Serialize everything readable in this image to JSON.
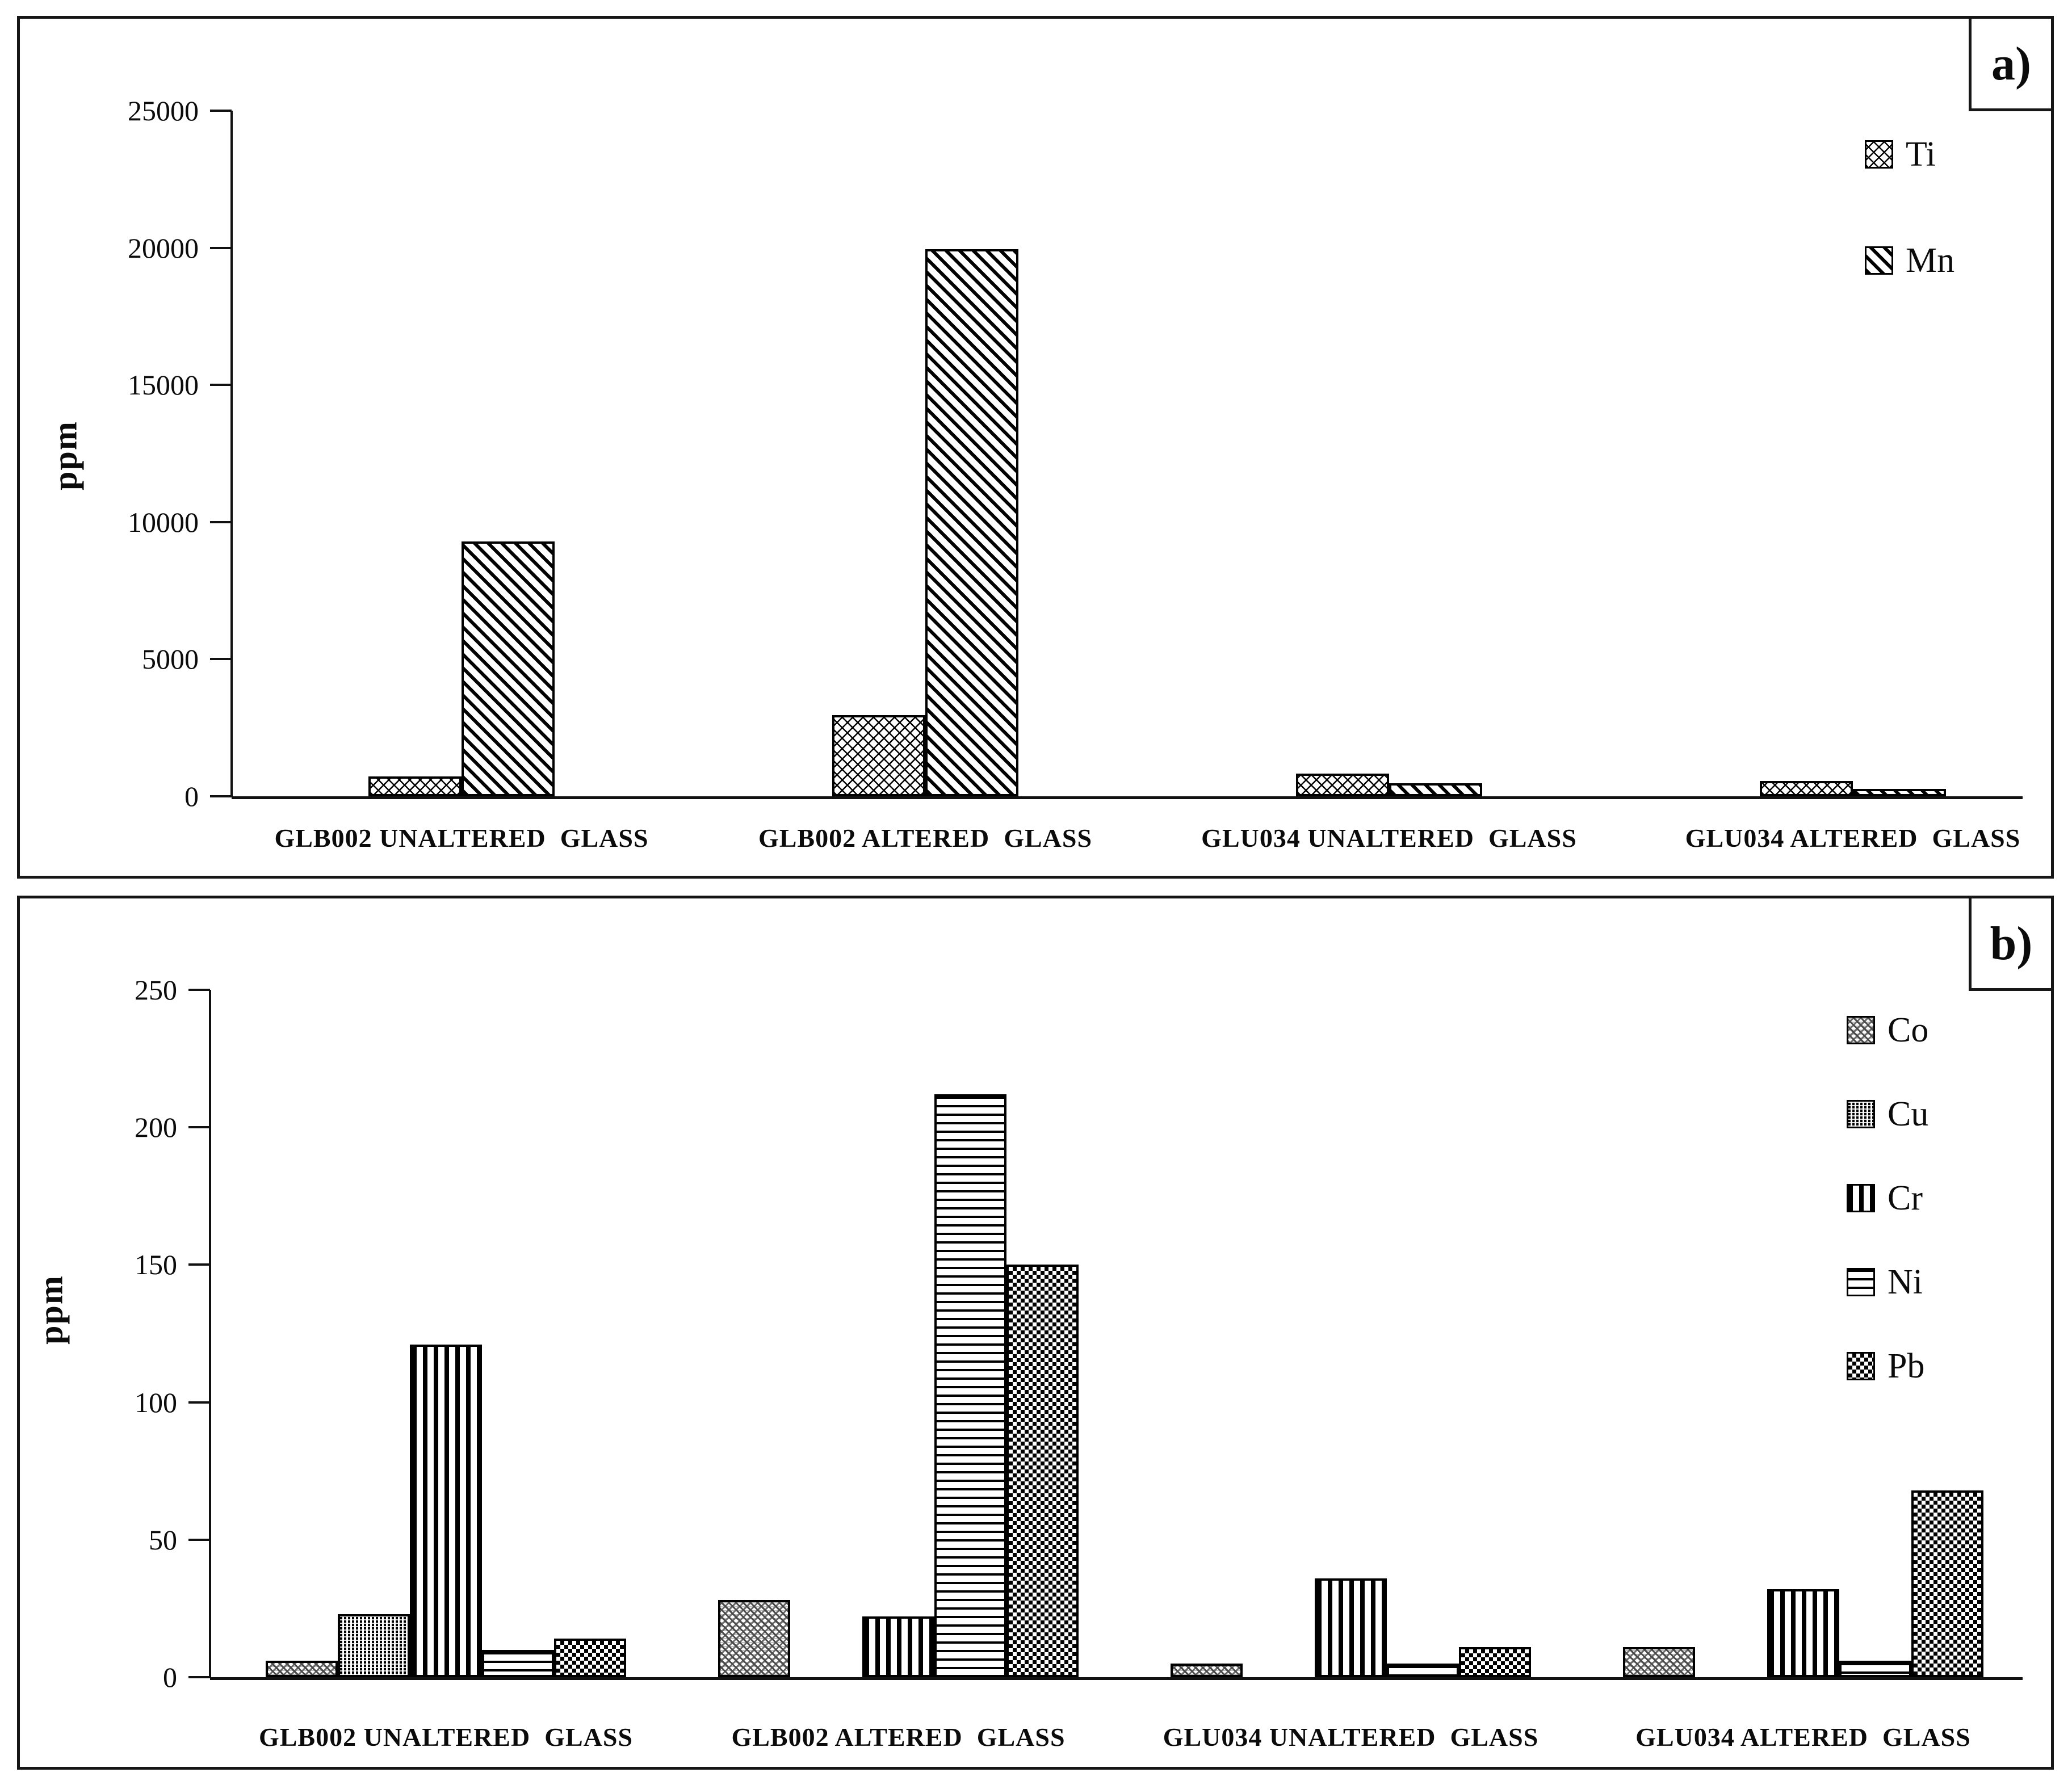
{
  "figure": {
    "background": "#ffffff",
    "border_color": "#161616",
    "bar_outline_color": "#000000"
  },
  "chart_data": [
    {
      "type": "bar",
      "panel_label": "a)",
      "title": "",
      "xlabel": "",
      "ylabel": "ppm",
      "ylim": [
        0,
        25000
      ],
      "yticks": [
        0,
        5000,
        10000,
        15000,
        20000,
        25000
      ],
      "grid": false,
      "legend_position": "top-right",
      "categories": [
        "GLB002 UNALTERED  GLASS",
        "GLB002 ALTERED  GLASS",
        "GLU034 UNALTERED  GLASS",
        "GLU034 ALTERED  GLASS"
      ],
      "series": [
        {
          "name": "Ti",
          "pattern": "crosshatch",
          "values": [
            720,
            2950,
            820,
            560
          ]
        },
        {
          "name": "Mn",
          "pattern": "diagonal",
          "values": [
            9300,
            19950,
            480,
            260
          ]
        }
      ]
    },
    {
      "type": "bar",
      "panel_label": "b)",
      "title": "",
      "xlabel": "",
      "ylabel": "ppm",
      "ylim": [
        0,
        250
      ],
      "yticks": [
        0,
        50,
        100,
        150,
        200,
        250
      ],
      "grid": false,
      "legend_position": "top-right",
      "categories": [
        "GLB002 UNALTERED  GLASS",
        "GLB002 ALTERED  GLASS",
        "GLU034 UNALTERED  GLASS",
        "GLU034 ALTERED  GLASS"
      ],
      "series": [
        {
          "name": "Co",
          "pattern": "zigzag",
          "values": [
            6,
            28,
            5,
            11
          ]
        },
        {
          "name": "Cu",
          "pattern": "dense-vertical",
          "values": [
            23,
            0,
            0,
            0
          ]
        },
        {
          "name": "Cr",
          "pattern": "vertical-bars",
          "values": [
            121,
            22,
            36,
            32
          ]
        },
        {
          "name": "Ni",
          "pattern": "horizontal-lines",
          "values": [
            10,
            212,
            5,
            6
          ]
        },
        {
          "name": "Pb",
          "pattern": "checkerboard",
          "values": [
            14,
            150,
            11,
            68
          ]
        }
      ]
    }
  ]
}
